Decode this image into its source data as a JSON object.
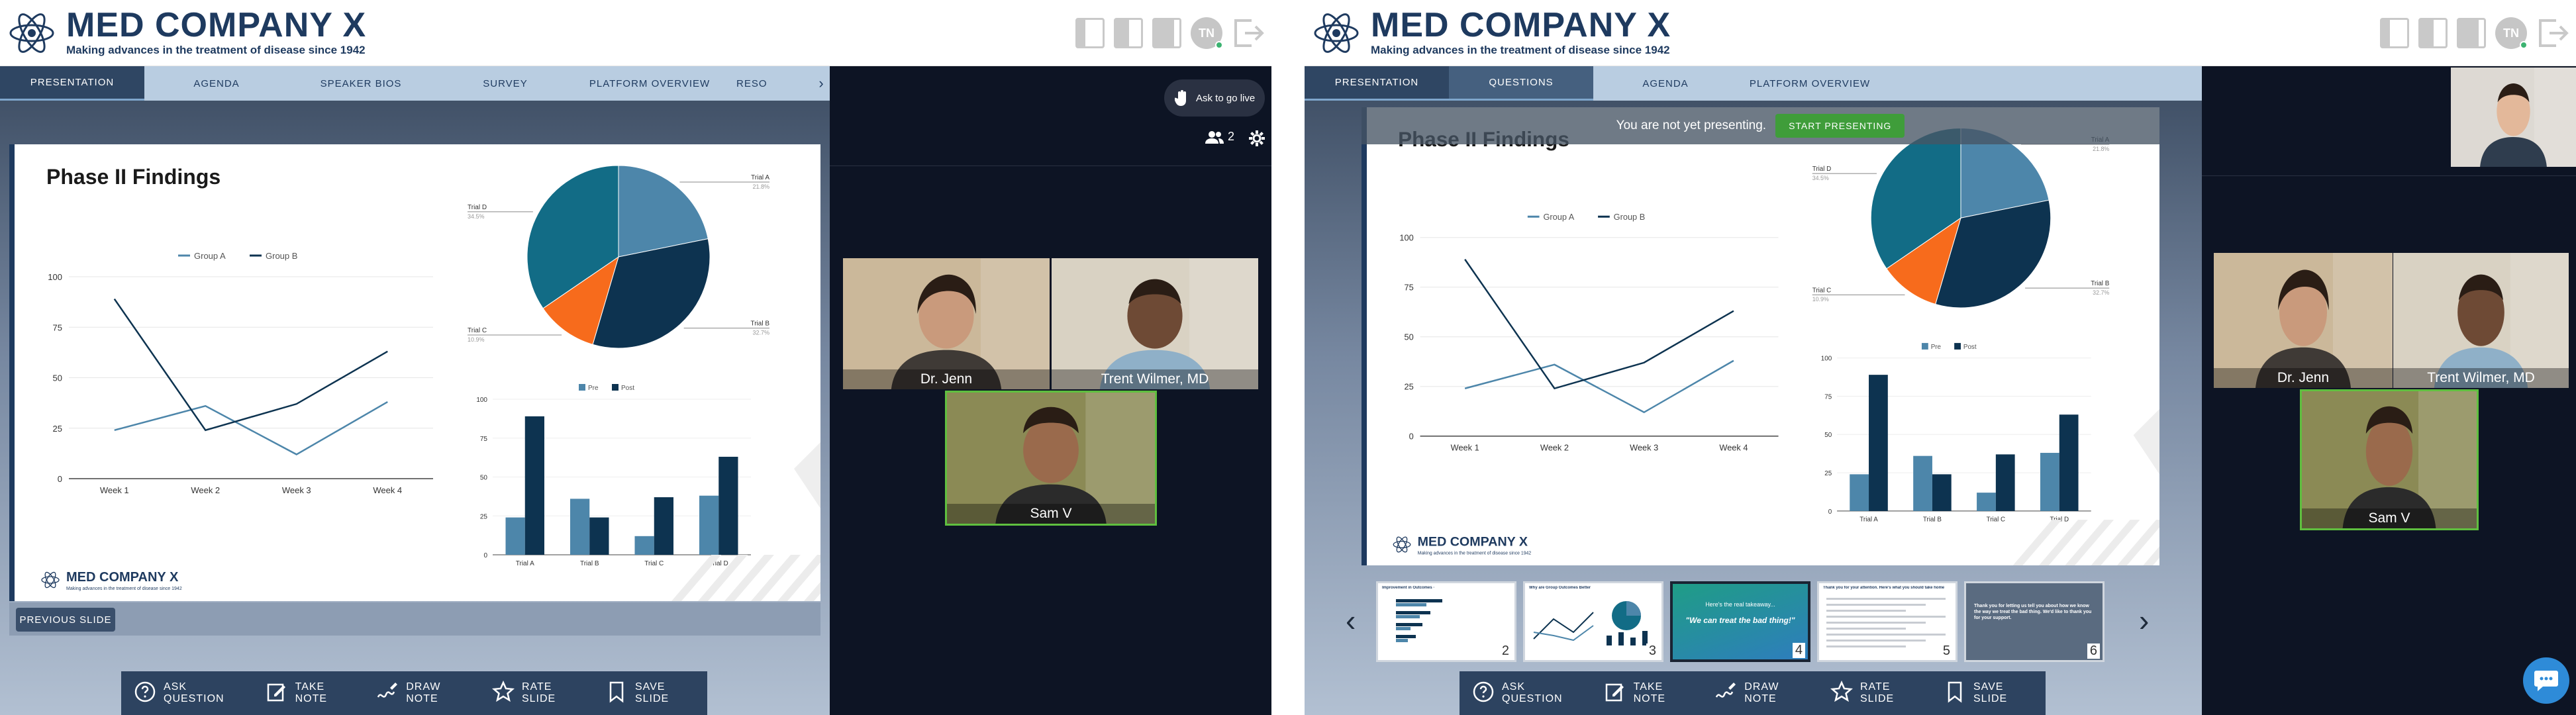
{
  "brand": {
    "title": "MED COMPANY X",
    "tagline": "Making advances in the treatment of disease since 1942",
    "avatar_initials": "TN"
  },
  "left": {
    "tabs": [
      "PRESENTATION",
      "AGENDA",
      "SPEAKER BIOS",
      "SURVEY",
      "PLATFORM OVERVIEW",
      "RESO"
    ],
    "ask_live": "Ask to go live",
    "participants": "2",
    "prev_slide": "PREVIOUS SLIDE"
  },
  "right": {
    "tabs": [
      "PRESENTATION",
      "QUESTIONS",
      "AGENDA",
      "PLATFORM OVERVIEW"
    ],
    "banner_text": "You are not yet presenting.",
    "start_button": "START PRESENTING",
    "thumbnails": [
      {
        "num": "2",
        "title": "Improvement in Outcomes ·"
      },
      {
        "num": "3",
        "title": "Why are Group Outcomes Better"
      },
      {
        "num": "4",
        "title": "Here's the real takeaway...",
        "quote": "\"We can treat the bad thing!\""
      },
      {
        "num": "5",
        "title": "Thank you for your attention. Here's what you should take home"
      },
      {
        "num": "6",
        "title": "Thank you for letting us tell you about how we know the way we treat the bad thing. We'd like to thank you for your support."
      }
    ]
  },
  "toolbar": [
    "ASK QUESTION",
    "TAKE NOTE",
    "DRAW NOTE",
    "RATE SLIDE",
    "SAVE SLIDE"
  ],
  "participants": [
    "Dr. Jenn",
    "Trent Wilmer, MD",
    "Sam V"
  ],
  "slide": {
    "title": "Phase II Findings",
    "footer_brand": "MED COMPANY X",
    "footer_tag": "Making advances in the treatment of disease since 1942",
    "line_legend": [
      "Group A",
      "Group B"
    ],
    "bar_legend": [
      "Pre",
      "Post"
    ]
  },
  "colors": {
    "dark_navy": "#0d3350",
    "teal": "#126c86",
    "mid_blue": "#4d86aa",
    "orange": "#f76b1c",
    "accent_green": "#3f9d3a"
  },
  "chart_data": [
    {
      "type": "line",
      "title": "",
      "x": [
        "Week 1",
        "Week 2",
        "Week 3",
        "Week 4"
      ],
      "ylim": [
        0,
        100
      ],
      "yticks": [
        0,
        25,
        50,
        75,
        100
      ],
      "series": [
        {
          "name": "Group A",
          "values": [
            24,
            36,
            12,
            38
          ]
        },
        {
          "name": "Group B",
          "values": [
            89,
            24,
            37,
            63
          ]
        }
      ]
    },
    {
      "type": "pie",
      "title": "",
      "labels": [
        "Trial A",
        "Trial B",
        "Trial C",
        "Trial D"
      ],
      "values": [
        21.8,
        32.7,
        10.9,
        34.5
      ],
      "value_labels": [
        "21.8%",
        "32.7%",
        "10.9%",
        "34.5%"
      ]
    },
    {
      "type": "bar",
      "title": "",
      "categories": [
        "Trial A",
        "Trial B",
        "Trial C",
        "Trial D"
      ],
      "ylim": [
        0,
        100
      ],
      "yticks": [
        0,
        25,
        50,
        75,
        100
      ],
      "series": [
        {
          "name": "Pre",
          "values": [
            24,
            36,
            12,
            38
          ]
        },
        {
          "name": "Post",
          "values": [
            89,
            24,
            37,
            63
          ]
        }
      ]
    }
  ]
}
